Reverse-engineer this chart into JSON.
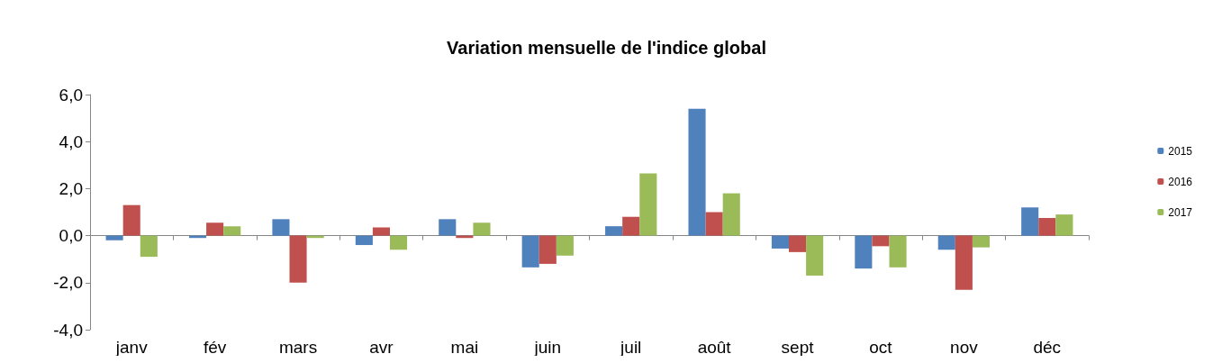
{
  "chart_data": {
    "type": "bar",
    "title": "Variation mensuelle de l'indice global",
    "categories": [
      "janv",
      "fév",
      "mars",
      "avr",
      "mai",
      "juin",
      "juil",
      "août",
      "sept",
      "oct",
      "nov",
      "déc"
    ],
    "series": [
      {
        "name": "2015",
        "color": "#4f81bd",
        "values": [
          -0.2,
          -0.1,
          0.7,
          -0.4,
          0.7,
          -1.35,
          0.4,
          5.4,
          -0.55,
          -1.4,
          -0.6,
          1.2
        ]
      },
      {
        "name": "2016",
        "color": "#c0504d",
        "values": [
          1.3,
          0.55,
          -2.0,
          0.35,
          -0.1,
          -1.2,
          0.8,
          1.0,
          -0.7,
          -0.45,
          -2.3,
          0.75
        ]
      },
      {
        "name": "2017",
        "color": "#9bbb59",
        "values": [
          -0.9,
          0.4,
          -0.1,
          -0.6,
          0.55,
          -0.85,
          2.65,
          1.8,
          -1.7,
          -1.35,
          -0.5,
          0.9
        ]
      }
    ],
    "ylim": [
      -4,
      6
    ],
    "yticks": [
      {
        "value": -4,
        "label": "-4,0"
      },
      {
        "value": -2,
        "label": "-2,0"
      },
      {
        "value": 0,
        "label": "0,0"
      },
      {
        "value": 2,
        "label": "2,0"
      },
      {
        "value": 4,
        "label": "4,0"
      },
      {
        "value": 6,
        "label": "6,0"
      }
    ],
    "legend": "right"
  }
}
